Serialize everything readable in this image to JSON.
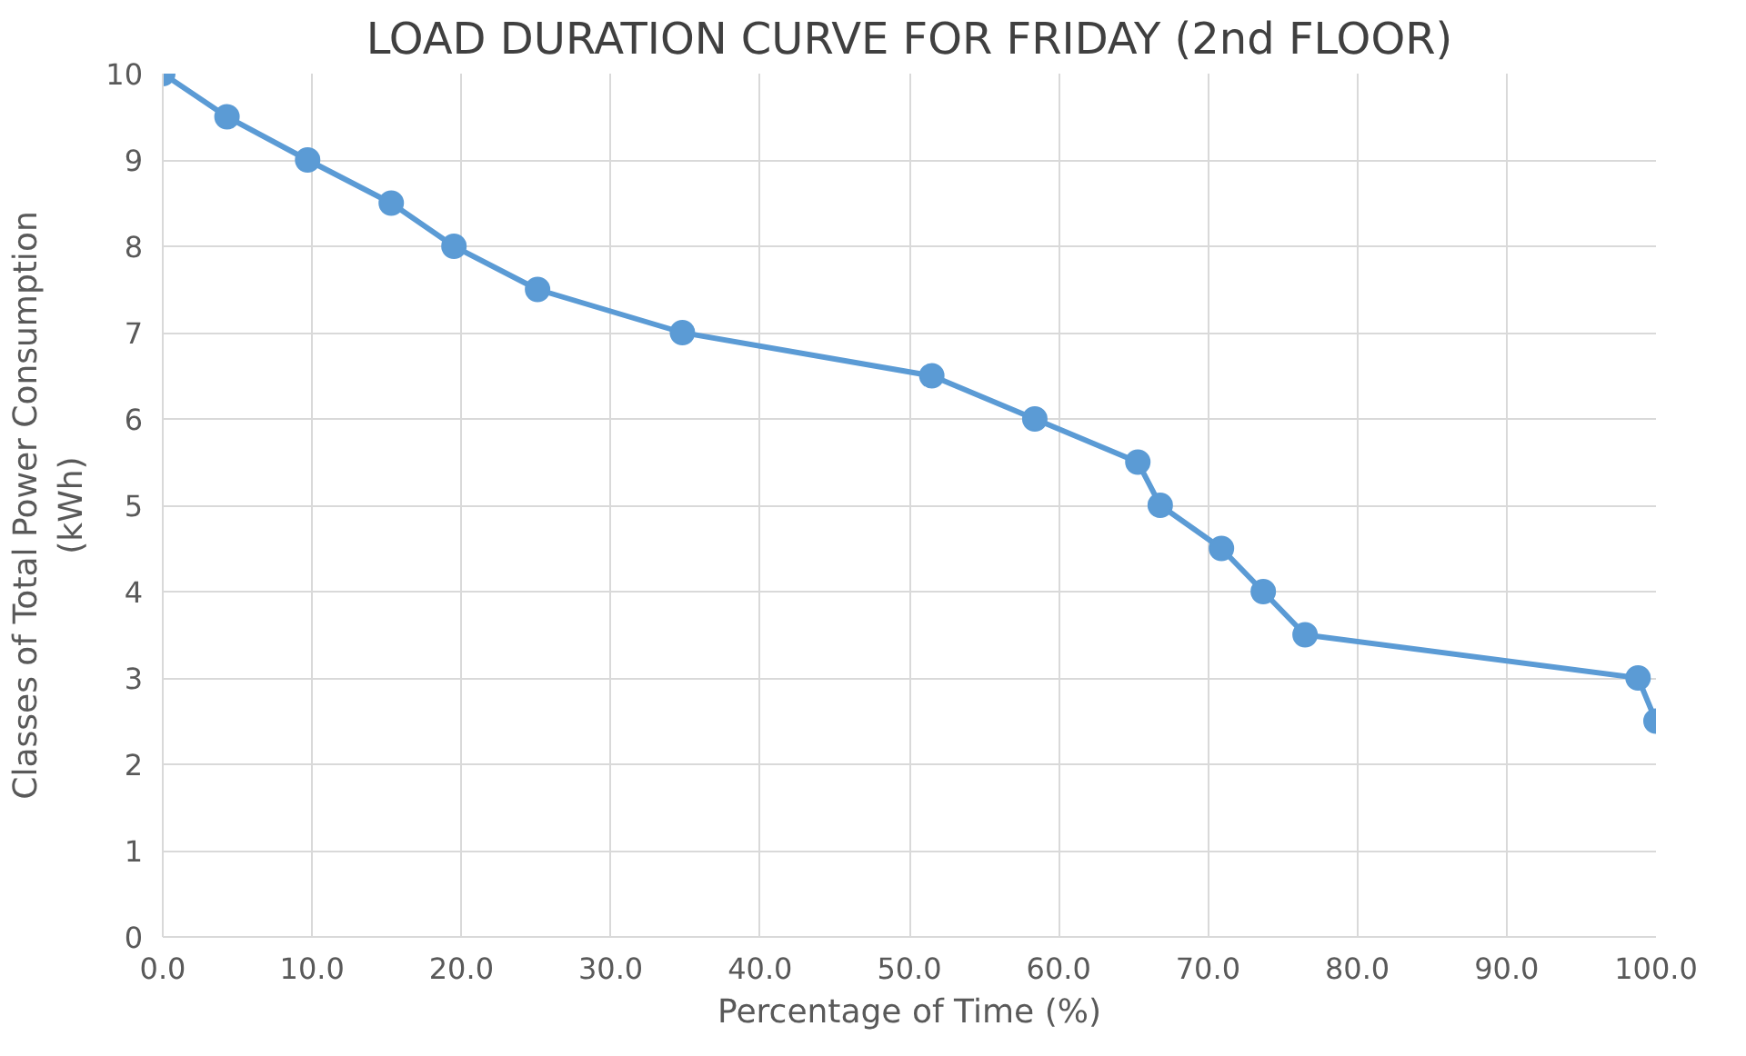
{
  "chart_data": {
    "type": "line",
    "title": "LOAD DURATION CURVE FOR FRIDAY (2nd FLOOR)",
    "xlabel": "Percentage of Time (%)",
    "ylabel": "Classes of Total Power Consumption\n(kWh)",
    "x": [
      0,
      4.3,
      9.7,
      15.3,
      19.5,
      25.1,
      34.8,
      51.5,
      58.4,
      65.3,
      66.8,
      70.9,
      73.7,
      76.5,
      98.8,
      100
    ],
    "series": [
      {
        "color": "#5b9bd5",
        "values": [
          10,
          9.5,
          9,
          8.5,
          8,
          7.5,
          7,
          6.5,
          6,
          5.5,
          5,
          4.5,
          4,
          3.5,
          3,
          2.5
        ]
      }
    ],
    "xlim": [
      0,
      100
    ],
    "ylim": [
      0,
      10
    ],
    "xticks": [
      {
        "value": 0,
        "label": "0.0"
      },
      {
        "value": 10,
        "label": "10.0"
      },
      {
        "value": 20,
        "label": "20.0"
      },
      {
        "value": 30,
        "label": "30.0"
      },
      {
        "value": 40,
        "label": "40.0"
      },
      {
        "value": 50,
        "label": "50.0"
      },
      {
        "value": 60,
        "label": "60.0"
      },
      {
        "value": 70,
        "label": "70.0"
      },
      {
        "value": 80,
        "label": "80.0"
      },
      {
        "value": 90,
        "label": "90.0"
      },
      {
        "value": 100,
        "label": "100.0"
      }
    ],
    "yticks": [
      0,
      1,
      2,
      3,
      4,
      5,
      6,
      7,
      8,
      9,
      10
    ],
    "grid": true,
    "marker": "circle",
    "line_style": "solid"
  }
}
